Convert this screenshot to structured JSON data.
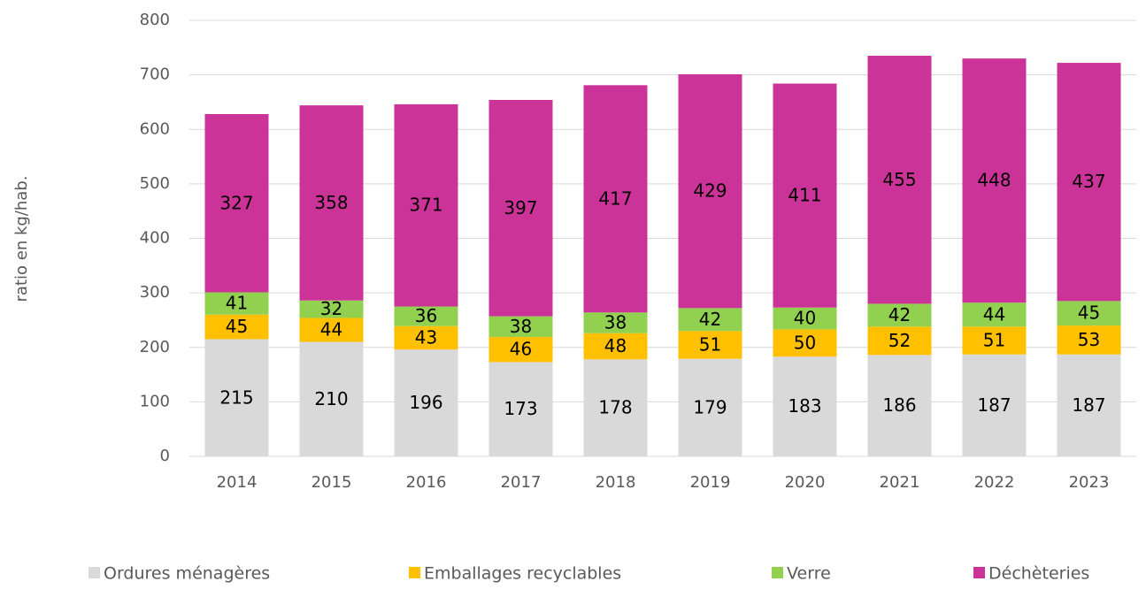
{
  "chart_data": {
    "type": "stacked_bar",
    "y_label": "ratio en kg/hab.",
    "categories": [
      "2014",
      "2015",
      "2016",
      "2017",
      "2018",
      "2019",
      "2020",
      "2021",
      "2022",
      "2023"
    ],
    "series": [
      {
        "name": "Ordures ménagères",
        "color": "#d9d9d9",
        "values": [
          215,
          210,
          196,
          173,
          178,
          179,
          183,
          186,
          187,
          187
        ]
      },
      {
        "name": "Emballages recyclables",
        "color": "#ffc000",
        "values": [
          45,
          44,
          43,
          46,
          48,
          51,
          50,
          52,
          51,
          53
        ]
      },
      {
        "name": "Verre",
        "color": "#92d050",
        "values": [
          41,
          32,
          36,
          38,
          38,
          42,
          40,
          42,
          44,
          45
        ]
      },
      {
        "name": "Déchèteries",
        "color": "#cc3399",
        "values": [
          327,
          358,
          371,
          397,
          417,
          429,
          411,
          455,
          448,
          437
        ]
      }
    ],
    "ylim": [
      0,
      800
    ],
    "yticks": [
      0,
      100,
      200,
      300,
      400,
      500,
      600,
      700,
      800
    ],
    "grid": true,
    "legend": "bottom"
  }
}
